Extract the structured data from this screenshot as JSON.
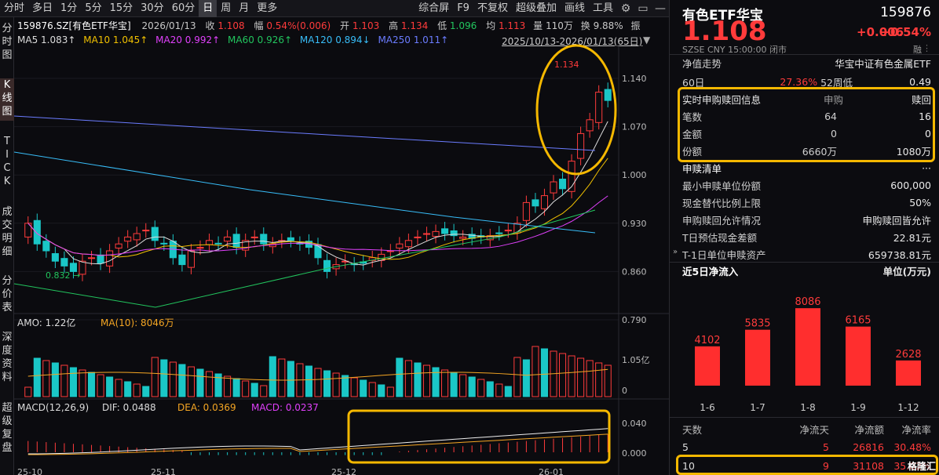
{
  "toolbar": {
    "items": [
      "分时",
      "多日",
      "1分",
      "5分",
      "15分",
      "30分",
      "60分",
      "日",
      "周",
      "月",
      "更多"
    ],
    "right": [
      "综合屏",
      "F9",
      "不复权",
      "超级叠加",
      "画线",
      "工具"
    ]
  },
  "leftnav": [
    "分时图",
    "K线图",
    "TICK",
    "成交明细",
    "分价表",
    "深度资料",
    "超级复盘"
  ],
  "header": {
    "code_name": "159876.SZ[有色ETF华宝]",
    "date": "2026/01/13",
    "close_label": "收",
    "close": "1.108",
    "chg_label": "幅",
    "chg": "0.54%(0.006)",
    "open_label": "开",
    "open": "1.103",
    "high_label": "高",
    "high": "1.134",
    "low_label": "低",
    "low": "1.096",
    "avg_label": "均",
    "avg": "1.113",
    "vol_label": "量",
    "vol": "110万",
    "turn_label": "换",
    "turn": "9.88%",
    "amp_label": "振"
  },
  "ma": {
    "ma5": "MA5 1.083↑",
    "ma10": "MA10 1.045↑",
    "ma20": "MA20 0.992↑",
    "ma60": "MA60 0.926↑",
    "ma120": "MA120 0.894↓",
    "ma250": "MA250 1.011↑",
    "range": "2025/10/13-2026/01/13(65日)"
  },
  "price_axis": [
    "1.140",
    "1.070",
    "1.000",
    "0.930",
    "0.860",
    "0.790"
  ],
  "annot": {
    "high": "1.134",
    "low": "0.832"
  },
  "amo": {
    "title": "AMO: 1.22亿",
    "ma10": "MA(10): 8046万",
    "axis_top": "1.05亿",
    "axis_bottom": "0"
  },
  "macd": {
    "title": "MACD(12,26,9)",
    "dif": "DIF: 0.0488",
    "dea": "DEA: 0.0369",
    "macd": "MACD: 0.0237",
    "axis_top": "0.040",
    "axis_bottom": "0.000"
  },
  "dates": [
    "25-10",
    "25-11",
    "25-12",
    "26-01"
  ],
  "right": {
    "name": "有色ETF华宝",
    "code": "159876",
    "price": "1.108",
    "chg": "+0.006",
    "pct": "+0.54%",
    "sub": "SZSE  CNY  15:00:00  闭市",
    "rong": "融",
    "net_label": "净值走势",
    "net_name": "华宝中证有色金属ETF",
    "d60_label": "60日",
    "d60_val": "27.36%",
    "wk52_label": "52周低",
    "wk52_val": "0.49",
    "subs_title": "实时申购赎回信息",
    "subs_col1": "申购",
    "subs_col2": "赎回",
    "subs_rows": [
      {
        "k": "笔数",
        "a": "64",
        "b": "16"
      },
      {
        "k": "金额",
        "a": "0",
        "b": "0"
      },
      {
        "k": "份额",
        "a": "6660万",
        "b": "1080万"
      }
    ],
    "list_title": "申赎清单",
    "list_more": "···",
    "list_rows": [
      {
        "k": "最小申赎单位份额",
        "v": "600,000"
      },
      {
        "k": "现金替代比例上限",
        "v": "50%"
      },
      {
        "k": "申购赎回允许情况",
        "v": "申购赎回皆允许"
      },
      {
        "k": "T日预估现金差额",
        "v": "22.81元"
      },
      {
        "k": "T-1日单位申赎资产",
        "v": "659738.81元"
      }
    ],
    "flow_title": "近5日净流入",
    "flow_unit": "单位(万元)",
    "table_head": [
      "天数",
      "净流天",
      "净流额",
      "净流率"
    ],
    "table_rows": [
      [
        "5",
        "5",
        "26816",
        "30.48%"
      ],
      [
        "10",
        "9",
        "31108",
        "35.02%"
      ]
    ],
    "watermark": "格隆汇"
  },
  "chart_data": {
    "type": "bar",
    "title": "近5日净流入",
    "ylabel": "单位(万元)",
    "categories": [
      "1-6",
      "1-7",
      "1-8",
      "1-9",
      "1-12"
    ],
    "values": [
      4102,
      5835,
      8086,
      6165,
      2628
    ]
  }
}
